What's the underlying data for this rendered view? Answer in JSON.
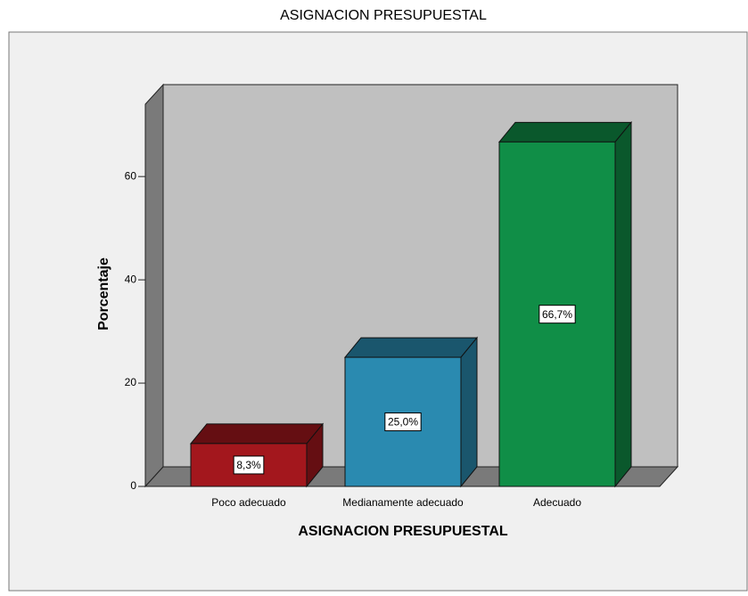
{
  "chart_data": {
    "type": "bar3d",
    "title": "ASIGNACION PRESUPUESTAL",
    "x_label": "ASIGNACION PRESUPUESTAL",
    "y_label": "Porcentaje",
    "categories": [
      "Poco adecuado",
      "Medianamente adecuado",
      "Adecuado"
    ],
    "values": [
      8.3,
      25.0,
      66.7
    ],
    "value_labels": [
      "8,3%",
      "25,0%",
      "66,7%"
    ],
    "colors": [
      "#a3171d",
      "#2a8ab0",
      "#108e47"
    ],
    "ylim": [
      0,
      74
    ],
    "yticks": [
      0,
      20,
      40,
      60
    ]
  }
}
